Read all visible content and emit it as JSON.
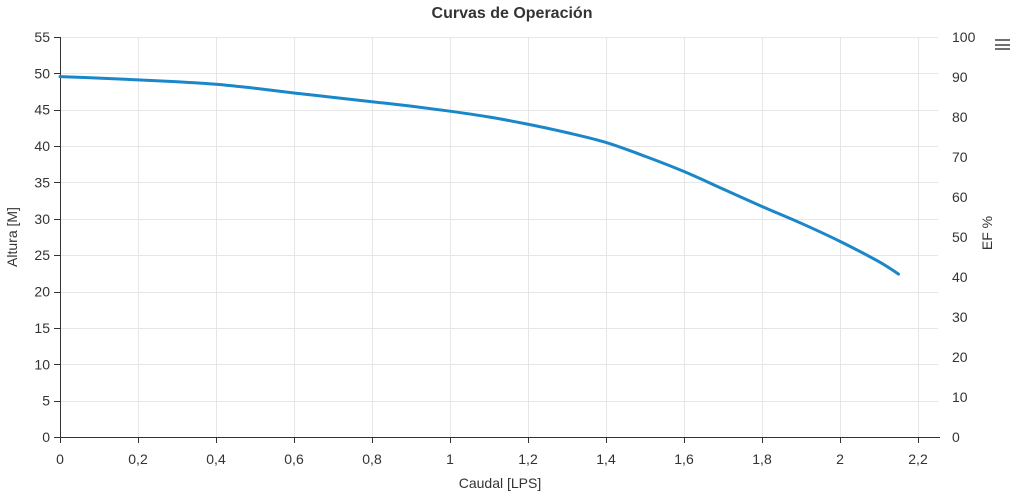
{
  "title": "Curvas de Operación",
  "context_menu": {
    "icon": "hamburger-menu-icon",
    "color": "#707070"
  },
  "chart_data": {
    "type": "line",
    "title": "Curvas de Operación",
    "xlabel": "Caudal [LPS]",
    "x_axis": {
      "min": 0,
      "max": 2.25,
      "tick_interval": 0.2,
      "tick_values": [
        0,
        0.2,
        0.4,
        0.6,
        0.8,
        1.0,
        1.2,
        1.4,
        1.6,
        1.8,
        2.0,
        2.2
      ],
      "tick_labels": [
        "0",
        "0,2",
        "0,4",
        "0,6",
        "0,8",
        "1",
        "1,2",
        "1,4",
        "1,6",
        "1,8",
        "2",
        "2,2"
      ]
    },
    "left_axis": {
      "title": "Altura [M]",
      "min": 0,
      "max": 55,
      "tick_interval": 5,
      "tick_labels": [
        "0",
        "5",
        "10",
        "15",
        "20",
        "25",
        "30",
        "35",
        "40",
        "45",
        "50",
        "55"
      ]
    },
    "right_axis": {
      "title": "EF %",
      "min": 0,
      "max": 100,
      "tick_interval": 10,
      "tick_labels": [
        "0",
        "10",
        "20",
        "30",
        "40",
        "50",
        "60",
        "70",
        "80",
        "90",
        "100"
      ]
    },
    "grid": true,
    "colors": {
      "grid": "#e6e6e6",
      "axis": "#333333",
      "text": "#333333",
      "series": "#1a87c9"
    },
    "series": [
      {
        "axis": "left",
        "color": "#1a87c9",
        "points": [
          [
            0.0,
            49.55
          ],
          [
            0.1,
            49.35
          ],
          [
            0.2,
            49.1
          ],
          [
            0.3,
            48.85
          ],
          [
            0.4,
            48.5
          ],
          [
            0.5,
            47.95
          ],
          [
            0.6,
            47.3
          ],
          [
            0.7,
            46.7
          ],
          [
            0.8,
            46.1
          ],
          [
            0.9,
            45.5
          ],
          [
            1.0,
            44.8
          ],
          [
            1.1,
            44.0
          ],
          [
            1.2,
            43.0
          ],
          [
            1.3,
            41.85
          ],
          [
            1.4,
            40.5
          ],
          [
            1.5,
            38.6
          ],
          [
            1.6,
            36.5
          ],
          [
            1.7,
            34.1
          ],
          [
            1.8,
            31.7
          ],
          [
            1.9,
            29.4
          ],
          [
            2.0,
            26.9
          ],
          [
            2.1,
            24.1
          ],
          [
            2.15,
            22.4
          ]
        ]
      }
    ]
  }
}
